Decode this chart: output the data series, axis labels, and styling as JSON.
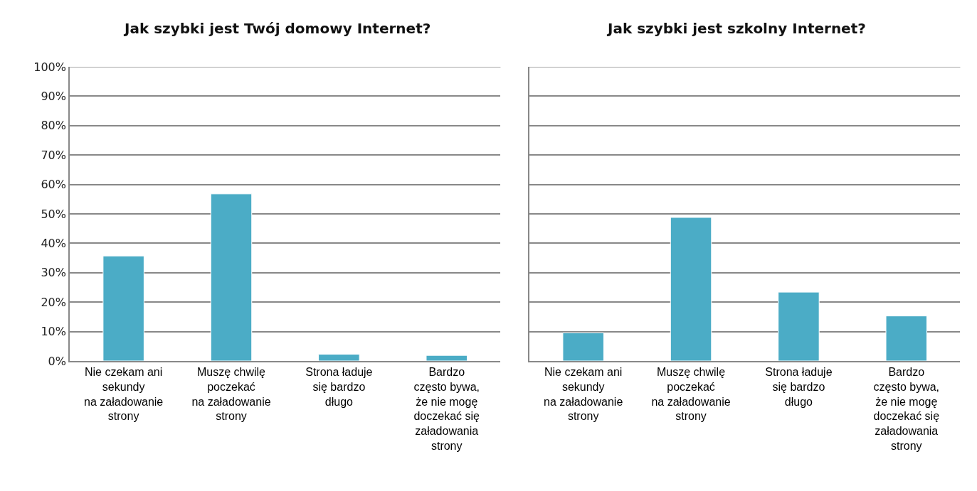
{
  "chart_data": [
    {
      "type": "bar",
      "title": "Jak szybki jest Twój domowy Internet?",
      "categories": [
        "Nie czekam ani\nsekundy\nna załadowanie\nstrony",
        "Muszę chwilę\npoczekać\nna załadowanie\nstrony",
        "Strona ładuje\nsię bardzo\ndługo",
        "Bardzo\nczęsto bywa,\nże nie mogę\ndoczekać się\nzaładowania\nstrony"
      ],
      "values": [
        35.7,
        56.8,
        2.3,
        1.9
      ],
      "color": "#4bacc6",
      "ylim": [
        0,
        100
      ],
      "yticks": [
        {
          "value": 0,
          "label": "0%"
        },
        {
          "value": 10,
          "label": "10%"
        },
        {
          "value": 20,
          "label": "20%"
        },
        {
          "value": 30,
          "label": "30%"
        },
        {
          "value": 40,
          "label": "40%"
        },
        {
          "value": 50,
          "label": "50%"
        },
        {
          "value": 60,
          "label": "60%"
        },
        {
          "value": 70,
          "label": "70%"
        },
        {
          "value": 80,
          "label": "80%"
        },
        {
          "value": 90,
          "label": "90%"
        },
        {
          "value": 100,
          "label": "100%"
        }
      ],
      "grid": "y"
    },
    {
      "type": "bar",
      "title": "Jak szybki jest szkolny Internet?",
      "categories": [
        "Nie czekam ani\nsekundy\nna załadowanie\nstrony",
        "Muszę chwilę\npoczekać\nna załadowanie\nstrony",
        "Strona ładuje\nsię bardzo\ndługo",
        "Bardzo\nczęsto bywa,\nże nie mogę\ndoczekać się\nzaładowania\nstrony"
      ],
      "values": [
        9.6,
        48.8,
        23.4,
        15.3
      ],
      "color": "#4bacc6",
      "ylim": [
        0,
        100
      ],
      "yticks": [
        0,
        10,
        20,
        30,
        40,
        50,
        60,
        70,
        80,
        90,
        100
      ],
      "grid": "y",
      "tick_labels": "x"
    }
  ]
}
